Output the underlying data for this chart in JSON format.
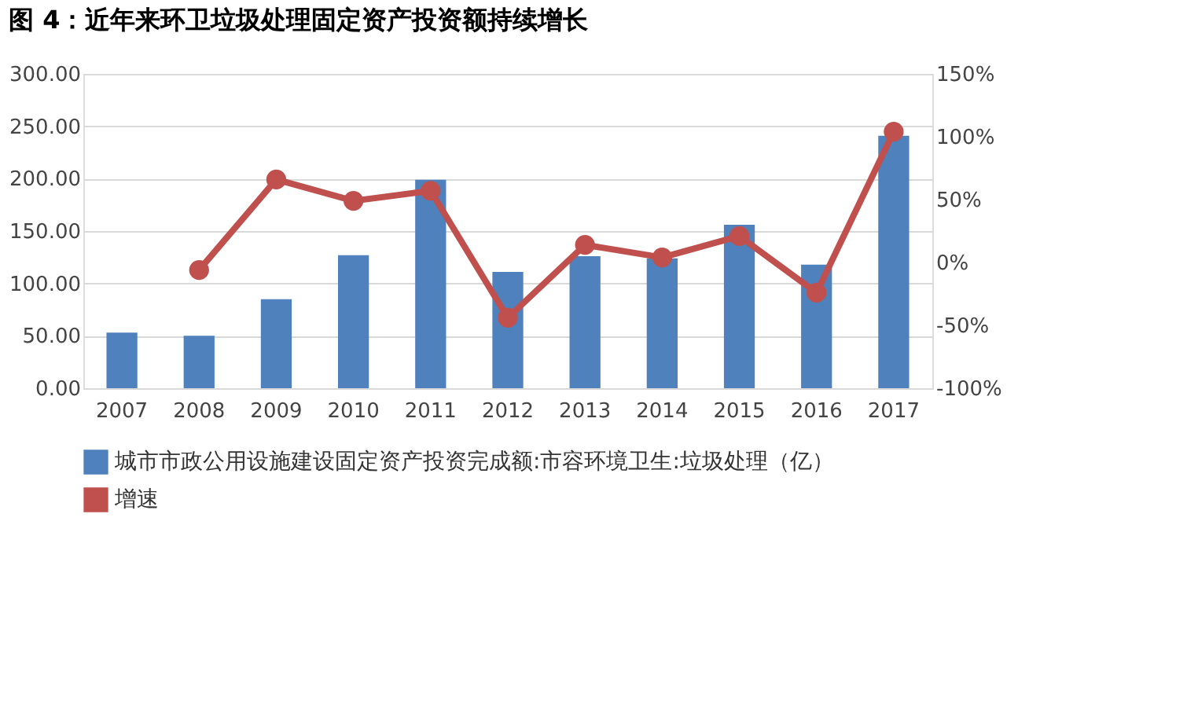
{
  "chart_data": {
    "type": "bar",
    "title": "图 4：近年来环卫垃圾处理固定资产投资额持续增长",
    "categories": [
      "2007",
      "2008",
      "2009",
      "2010",
      "2011",
      "2012",
      "2013",
      "2014",
      "2015",
      "2016",
      "2017"
    ],
    "series": [
      {
        "name": "城市市政公用设施建设固定资产投资完成额:市容环境卫生:垃圾处理（亿）",
        "color": "#4f81bd",
        "values": [
          53,
          50,
          85,
          127,
          199,
          111,
          126,
          124,
          156,
          118,
          241
        ]
      },
      {
        "name": "增速",
        "type": "line",
        "axis": "y2",
        "color": "#c0504d",
        "values": [
          null,
          -6,
          66,
          49,
          57,
          -44,
          14,
          4,
          21,
          -24,
          104
        ]
      }
    ],
    "ylim": [
      0,
      300
    ],
    "yticks": [
      {
        "value": 0,
        "label": "0.00"
      },
      {
        "value": 50,
        "label": "50.00"
      },
      {
        "value": 100,
        "label": "100.00"
      },
      {
        "value": 150,
        "label": "150.00"
      },
      {
        "value": 200,
        "label": "200.00"
      },
      {
        "value": 250,
        "label": "250.00"
      },
      {
        "value": 300,
        "label": "300.00"
      }
    ],
    "y2lim": [
      -100,
      150
    ],
    "y2ticks": [
      {
        "value": -100,
        "label": "-100%"
      },
      {
        "value": -50,
        "label": "-50%"
      },
      {
        "value": 0,
        "label": "0%"
      },
      {
        "value": 50,
        "label": "50%"
      },
      {
        "value": 100,
        "label": "100%"
      },
      {
        "value": 150,
        "label": "150%"
      }
    ],
    "grid": "y",
    "legend": "bottom",
    "marker": "circle",
    "line_style": "solid"
  }
}
